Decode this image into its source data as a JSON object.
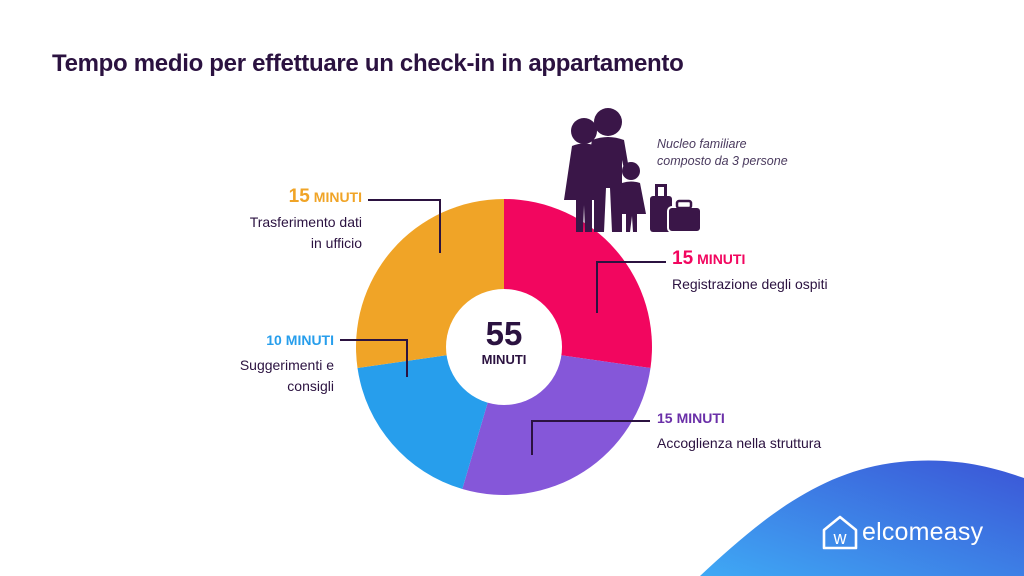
{
  "title": "Tempo medio per effettuare un check-in in appartamento",
  "center": {
    "value": "55",
    "unit": "MINUTI"
  },
  "family_note": {
    "line1": "Nucleo familiare",
    "line2": "composto da 3 persone"
  },
  "brand": {
    "letter": "w",
    "name": "elcomeasy"
  },
  "colors": {
    "title": "#2b1240",
    "pink": "#f2065f",
    "purple": "#8557d9",
    "blue": "#279eec",
    "orange": "#f0a427",
    "silhouette": "#3a1648"
  },
  "segments": [
    {
      "label_value": "15",
      "label_unit": "MINUTI",
      "desc_1": "Registrazione degli ospiti",
      "desc_2": "",
      "color": "#f2065f"
    },
    {
      "label_value": "15",
      "label_unit": "MINUTI",
      "desc_1": "Accoglienza nella struttura",
      "desc_2": "",
      "color": "#8557d9"
    },
    {
      "label_value": "10",
      "label_unit": "MINUTI",
      "desc_1": "Suggerimenti e",
      "desc_2": "consigli",
      "color": "#279eec"
    },
    {
      "label_value": "15",
      "label_unit": "MINUTI",
      "desc_1": "Trasferimento dati",
      "desc_2": "in ufficio",
      "color": "#f0a427"
    }
  ],
  "chart_data": {
    "type": "pie",
    "title": "Tempo medio per effettuare un check-in in appartamento",
    "categories": [
      "Registrazione degli ospiti",
      "Accoglienza nella struttura",
      "Suggerimenti e consigli",
      "Trasferimento dati in ufficio"
    ],
    "values": [
      15,
      15,
      10,
      15
    ],
    "unit": "MINUTI",
    "total": 55,
    "colors": [
      "#f2065f",
      "#8557d9",
      "#279eec",
      "#f0a427"
    ],
    "start": "top, clockwise"
  }
}
